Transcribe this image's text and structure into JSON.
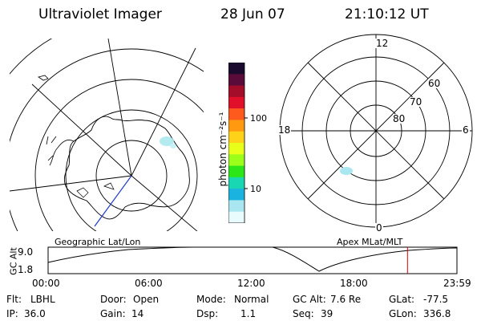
{
  "header": {
    "instrument": "Ultraviolet Imager",
    "date": "28 Jun 07",
    "time": "21:10:12 UT"
  },
  "colorbar": {
    "unit_label": "photon cm⁻²s⁻¹",
    "tick_labels": [
      "100",
      "10"
    ],
    "colors": [
      "#1a0a2e",
      "#5a0b3a",
      "#a30d2a",
      "#e0102a",
      "#ff5a1e",
      "#ff9a10",
      "#ffd21a",
      "#e8ff1a",
      "#9bff1a",
      "#2de61a",
      "#1ad7b3",
      "#1ab3e0",
      "#a9e6ef",
      "#e8fbfd"
    ]
  },
  "left_map": {
    "label": "Geographic Lat/Lon"
  },
  "right_map": {
    "label": "Apex  MLat/MLT",
    "mlt_labels": {
      "top": "12",
      "left": "18",
      "right": "6",
      "bottom": "0"
    },
    "mlat_labels": [
      "60",
      "70",
      "80"
    ]
  },
  "timeline": {
    "y_axis_label": "GC Alt",
    "y_ticks": [
      "9.0",
      "1.8"
    ],
    "x_ticks": [
      "00:00",
      "06:00",
      "12:00",
      "18:00",
      "23:59"
    ],
    "current_marker_fraction": 0.879,
    "marker_color": "#cc0000"
  },
  "status": {
    "row1": [
      {
        "key": "Flt:",
        "value": "LBHL"
      },
      {
        "key": "Door:",
        "value": "Open"
      },
      {
        "key": "Mode:",
        "value": "Normal"
      },
      {
        "key": "GC Alt:",
        "value": "7.6 Re"
      },
      {
        "key": "GLat:",
        "value": "-77.5"
      }
    ],
    "row2": [
      {
        "key": "IP:",
        "value": "36.0"
      },
      {
        "key": "Gain:",
        "value": "14"
      },
      {
        "key": "Dsp:",
        "value": "1.1"
      },
      {
        "key": "Seq:",
        "value": "39"
      },
      {
        "key": "GLon:",
        "value": "336.8"
      }
    ]
  }
}
